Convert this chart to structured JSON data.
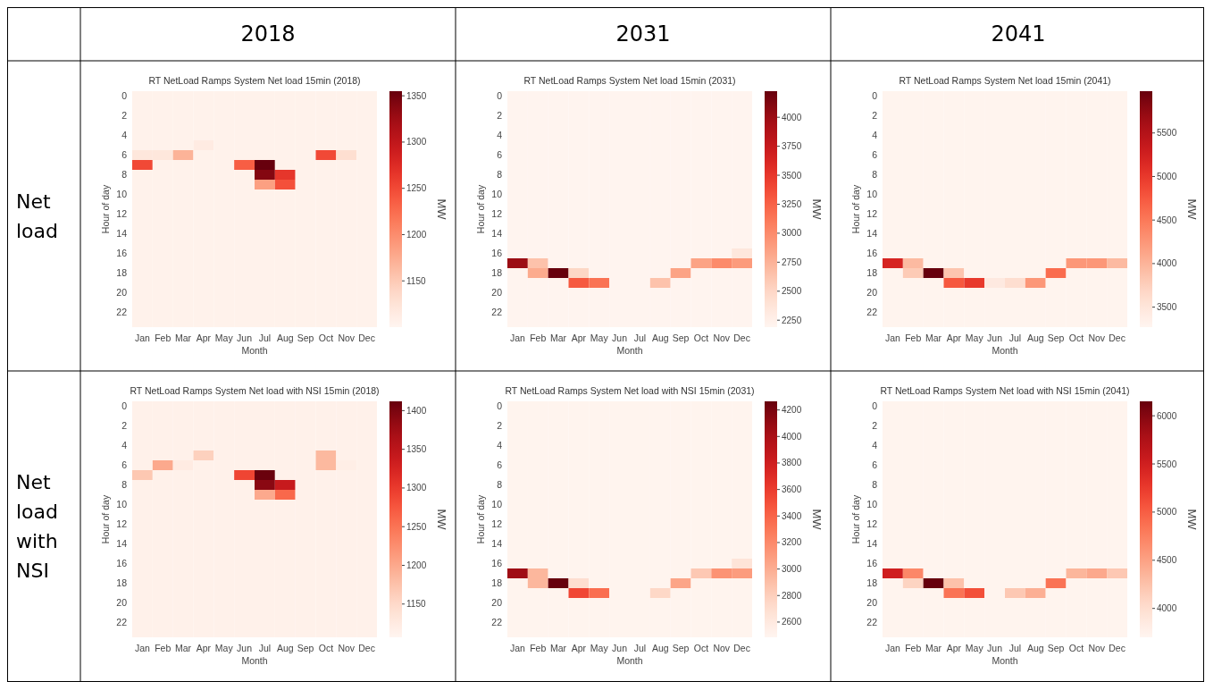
{
  "chart_data": [
    {
      "type": "heatmap",
      "title": "RT NetLoad Ramps System Net load 15min (2018)",
      "xlabel": "Month",
      "ylabel": "Hour of day",
      "clabel": "MW",
      "annotations": [
        "2018",
        "Net load"
      ],
      "categories": [
        "Jan",
        "Feb",
        "Mar",
        "Apr",
        "May",
        "Jun",
        "Jul",
        "Aug",
        "Sep",
        "Oct",
        "Nov",
        "Dec"
      ],
      "y_categories": [
        "0",
        null,
        "2",
        null,
        "4",
        null,
        "6",
        null,
        "8",
        null,
        "10",
        null,
        "12",
        null,
        "14",
        null,
        "16",
        null,
        "18",
        null,
        "20",
        null,
        "22",
        null
      ],
      "clim": [
        1100,
        1355
      ],
      "cticks": [
        1150,
        1200,
        1250,
        1300,
        1350
      ],
      "cells": [
        [
          1105,
          1105,
          1105,
          1105,
          1105,
          1105,
          1105,
          1105,
          1105,
          1105,
          1105,
          1105
        ],
        [
          1105,
          1105,
          1105,
          1105,
          1105,
          1105,
          1105,
          1105,
          1105,
          1105,
          1105,
          1105
        ],
        [
          1105,
          1105,
          1105,
          1105,
          1105,
          1105,
          1105,
          1105,
          1105,
          1105,
          1105,
          1105
        ],
        [
          1105,
          1105,
          1105,
          1105,
          1105,
          1105,
          1105,
          1105,
          1105,
          1105,
          1105,
          1105
        ],
        [
          1105,
          1105,
          1105,
          1105,
          1105,
          1105,
          1105,
          1105,
          1105,
          1105,
          1105,
          1105
        ],
        [
          1105,
          1105,
          1105,
          1115,
          1105,
          1105,
          1105,
          1105,
          1105,
          1105,
          1105,
          1105
        ],
        [
          1120,
          1120,
          1170,
          1105,
          1105,
          1105,
          1105,
          1105,
          1105,
          1250,
          1130,
          1105
        ],
        [
          1250,
          1105,
          1105,
          1105,
          1105,
          1235,
          1355,
          1105,
          1105,
          1105,
          1105,
          1105
        ],
        [
          1105,
          1105,
          1105,
          1105,
          1105,
          1105,
          1340,
          1265,
          1105,
          1105,
          1105,
          1105
        ],
        [
          1105,
          1105,
          1105,
          1105,
          1105,
          1105,
          1185,
          1245,
          1105,
          1105,
          1105,
          1105
        ],
        [
          1105,
          1105,
          1105,
          1105,
          1105,
          1105,
          1105,
          1105,
          1105,
          1105,
          1105,
          1105
        ],
        [
          1105,
          1105,
          1105,
          1105,
          1105,
          1105,
          1105,
          1105,
          1105,
          1105,
          1105,
          1105
        ],
        [
          1105,
          1105,
          1105,
          1105,
          1105,
          1105,
          1105,
          1105,
          1105,
          1105,
          1105,
          1105
        ],
        [
          1105,
          1105,
          1105,
          1105,
          1105,
          1105,
          1105,
          1105,
          1105,
          1105,
          1105,
          1105
        ],
        [
          1105,
          1105,
          1105,
          1105,
          1105,
          1105,
          1105,
          1105,
          1105,
          1105,
          1105,
          1105
        ],
        [
          1105,
          1105,
          1105,
          1105,
          1105,
          1105,
          1105,
          1105,
          1105,
          1105,
          1105,
          1105
        ],
        [
          1105,
          1105,
          1105,
          1105,
          1105,
          1105,
          1105,
          1105,
          1105,
          1105,
          1105,
          1105
        ],
        [
          1105,
          1105,
          1105,
          1105,
          1105,
          1105,
          1105,
          1105,
          1105,
          1105,
          1105,
          1105
        ],
        [
          1105,
          1105,
          1105,
          1105,
          1105,
          1105,
          1105,
          1105,
          1105,
          1105,
          1105,
          1105
        ],
        [
          1105,
          1105,
          1105,
          1105,
          1105,
          1105,
          1105,
          1105,
          1105,
          1105,
          1105,
          1105
        ],
        [
          1105,
          1105,
          1105,
          1105,
          1105,
          1105,
          1105,
          1105,
          1105,
          1105,
          1105,
          1105
        ],
        [
          1105,
          1105,
          1105,
          1105,
          1105,
          1105,
          1105,
          1105,
          1105,
          1105,
          1105,
          1105
        ],
        [
          1105,
          1105,
          1105,
          1105,
          1105,
          1105,
          1105,
          1105,
          1105,
          1105,
          1105,
          1105
        ],
        [
          1105,
          1105,
          1105,
          1105,
          1105,
          1105,
          1105,
          1105,
          1105,
          1105,
          1105,
          1105
        ]
      ]
    },
    {
      "type": "heatmap",
      "title": "RT NetLoad Ramps System Net load 15min (2031)",
      "xlabel": "Month",
      "ylabel": "Hour of day",
      "clabel": "MW",
      "annotations": [
        "2031"
      ],
      "categories": [
        "Jan",
        "Feb",
        "Mar",
        "Apr",
        "May",
        "Jun",
        "Jul",
        "Aug",
        "Sep",
        "Oct",
        "Nov",
        "Dec"
      ],
      "y_categories": [
        "0",
        null,
        "2",
        null,
        "4",
        null,
        "6",
        null,
        "8",
        null,
        "10",
        null,
        "12",
        null,
        "14",
        null,
        "16",
        null,
        "18",
        null,
        "20",
        null,
        "22",
        null
      ],
      "clim": [
        2190,
        4225
      ],
      "cticks": [
        2250,
        2500,
        2750,
        3000,
        3250,
        3500,
        3750,
        4000
      ],
      "cells": [
        [
          2200,
          2200,
          2200,
          2200,
          2200,
          2200,
          2200,
          2200,
          2200,
          2200,
          2200,
          2200
        ],
        [
          2200,
          2200,
          2200,
          2200,
          2200,
          2200,
          2200,
          2200,
          2200,
          2200,
          2200,
          2200
        ],
        [
          2200,
          2200,
          2200,
          2200,
          2200,
          2200,
          2200,
          2200,
          2200,
          2200,
          2200,
          2200
        ],
        [
          2200,
          2200,
          2200,
          2200,
          2200,
          2200,
          2200,
          2200,
          2200,
          2200,
          2200,
          2200
        ],
        [
          2200,
          2200,
          2200,
          2200,
          2200,
          2200,
          2200,
          2200,
          2200,
          2200,
          2200,
          2200
        ],
        [
          2200,
          2200,
          2200,
          2200,
          2200,
          2200,
          2200,
          2200,
          2200,
          2200,
          2200,
          2200
        ],
        [
          2200,
          2200,
          2200,
          2200,
          2200,
          2200,
          2200,
          2200,
          2200,
          2200,
          2200,
          2200
        ],
        [
          2200,
          2200,
          2200,
          2200,
          2200,
          2200,
          2200,
          2200,
          2200,
          2200,
          2200,
          2200
        ],
        [
          2200,
          2200,
          2200,
          2200,
          2200,
          2200,
          2200,
          2200,
          2200,
          2200,
          2200,
          2200
        ],
        [
          2200,
          2200,
          2200,
          2200,
          2200,
          2200,
          2200,
          2200,
          2200,
          2200,
          2200,
          2200
        ],
        [
          2200,
          2200,
          2200,
          2200,
          2200,
          2200,
          2200,
          2200,
          2200,
          2200,
          2200,
          2200
        ],
        [
          2200,
          2200,
          2200,
          2200,
          2200,
          2200,
          2200,
          2200,
          2200,
          2200,
          2200,
          2200
        ],
        [
          2200,
          2200,
          2200,
          2200,
          2200,
          2200,
          2200,
          2200,
          2200,
          2200,
          2200,
          2200
        ],
        [
          2200,
          2200,
          2200,
          2200,
          2200,
          2200,
          2200,
          2200,
          2200,
          2200,
          2200,
          2200
        ],
        [
          2200,
          2200,
          2200,
          2200,
          2200,
          2200,
          2200,
          2200,
          2200,
          2200,
          2200,
          2200
        ],
        [
          2200,
          2200,
          2200,
          2200,
          2200,
          2200,
          2200,
          2200,
          2200,
          2200,
          2200,
          2200
        ],
        [
          2200,
          2200,
          2200,
          2200,
          2200,
          2200,
          2200,
          2200,
          2200,
          2200,
          2200,
          2350
        ],
        [
          4000,
          2650,
          2200,
          2200,
          2200,
          2200,
          2200,
          2200,
          2200,
          2850,
          3000,
          2900
        ],
        [
          2200,
          2800,
          4225,
          2500,
          2200,
          2200,
          2200,
          2200,
          2850,
          2200,
          2200,
          2200
        ],
        [
          2200,
          2200,
          2200,
          3300,
          3150,
          2200,
          2200,
          2650,
          2200,
          2200,
          2200,
          2200
        ],
        [
          2200,
          2200,
          2200,
          2200,
          2200,
          2200,
          2200,
          2200,
          2200,
          2200,
          2200,
          2200
        ],
        [
          2200,
          2200,
          2200,
          2200,
          2200,
          2200,
          2200,
          2200,
          2200,
          2200,
          2200,
          2200
        ],
        [
          2200,
          2200,
          2200,
          2200,
          2200,
          2200,
          2200,
          2200,
          2200,
          2200,
          2200,
          2200
        ],
        [
          2200,
          2200,
          2200,
          2200,
          2200,
          2200,
          2200,
          2200,
          2200,
          2200,
          2200,
          2200
        ]
      ]
    },
    {
      "type": "heatmap",
      "title": "RT NetLoad Ramps System Net load 15min (2041)",
      "xlabel": "Month",
      "ylabel": "Hour of day",
      "clabel": "MW",
      "annotations": [
        "2041"
      ],
      "categories": [
        "Jan",
        "Feb",
        "Mar",
        "Apr",
        "May",
        "Jun",
        "Jul",
        "Aug",
        "Sep",
        "Oct",
        "Nov",
        "Dec"
      ],
      "y_categories": [
        "0",
        null,
        "2",
        null,
        "4",
        null,
        "6",
        null,
        "8",
        null,
        "10",
        null,
        "12",
        null,
        "14",
        null,
        "16",
        null,
        "18",
        null,
        "20",
        null,
        "22",
        null
      ],
      "clim": [
        3270,
        5980
      ],
      "cticks": [
        3500,
        4000,
        4500,
        5000,
        5500
      ],
      "cells": [
        [
          3290,
          3290,
          3290,
          3290,
          3290,
          3290,
          3290,
          3290,
          3290,
          3290,
          3290,
          3290
        ],
        [
          3290,
          3290,
          3290,
          3290,
          3290,
          3290,
          3290,
          3290,
          3290,
          3290,
          3290,
          3290
        ],
        [
          3290,
          3290,
          3290,
          3290,
          3290,
          3290,
          3290,
          3290,
          3290,
          3290,
          3290,
          3290
        ],
        [
          3290,
          3290,
          3290,
          3290,
          3290,
          3290,
          3290,
          3290,
          3290,
          3290,
          3290,
          3290
        ],
        [
          3290,
          3290,
          3290,
          3290,
          3290,
          3290,
          3290,
          3290,
          3290,
          3290,
          3290,
          3290
        ],
        [
          3290,
          3290,
          3290,
          3290,
          3290,
          3290,
          3290,
          3290,
          3290,
          3290,
          3290,
          3290
        ],
        [
          3290,
          3290,
          3290,
          3290,
          3290,
          3290,
          3290,
          3290,
          3290,
          3290,
          3290,
          3290
        ],
        [
          3290,
          3290,
          3290,
          3290,
          3290,
          3290,
          3290,
          3290,
          3290,
          3290,
          3290,
          3290
        ],
        [
          3290,
          3290,
          3290,
          3290,
          3290,
          3290,
          3290,
          3290,
          3290,
          3290,
          3290,
          3290
        ],
        [
          3290,
          3290,
          3290,
          3290,
          3290,
          3290,
          3290,
          3290,
          3290,
          3290,
          3290,
          3290
        ],
        [
          3290,
          3290,
          3290,
          3290,
          3290,
          3290,
          3290,
          3290,
          3290,
          3290,
          3290,
          3290
        ],
        [
          3290,
          3290,
          3290,
          3290,
          3290,
          3290,
          3290,
          3290,
          3290,
          3290,
          3290,
          3290
        ],
        [
          3290,
          3290,
          3290,
          3290,
          3290,
          3290,
          3290,
          3290,
          3290,
          3290,
          3290,
          3290
        ],
        [
          3290,
          3290,
          3290,
          3290,
          3290,
          3290,
          3290,
          3290,
          3290,
          3290,
          3290,
          3290
        ],
        [
          3290,
          3290,
          3290,
          3290,
          3290,
          3290,
          3290,
          3290,
          3290,
          3290,
          3290,
          3290
        ],
        [
          3290,
          3290,
          3290,
          3290,
          3290,
          3290,
          3290,
          3290,
          3290,
          3290,
          3290,
          3290
        ],
        [
          3290,
          3290,
          3290,
          3290,
          3290,
          3290,
          3290,
          3290,
          3290,
          3290,
          3290,
          3290
        ],
        [
          5200,
          3950,
          3290,
          3290,
          3290,
          3290,
          3290,
          3290,
          3290,
          4250,
          4250,
          3950
        ],
        [
          3290,
          3800,
          5980,
          3850,
          3290,
          3290,
          3290,
          3290,
          4600,
          3290,
          3290,
          3290
        ],
        [
          3290,
          3290,
          3290,
          4750,
          5000,
          3450,
          3600,
          4250,
          3290,
          3290,
          3290,
          3290
        ],
        [
          3290,
          3290,
          3290,
          3290,
          3290,
          3290,
          3290,
          3290,
          3290,
          3290,
          3290,
          3290
        ],
        [
          3290,
          3290,
          3290,
          3290,
          3290,
          3290,
          3290,
          3290,
          3290,
          3290,
          3290,
          3290
        ],
        [
          3290,
          3290,
          3290,
          3290,
          3290,
          3290,
          3290,
          3290,
          3290,
          3290,
          3290,
          3290
        ],
        [
          3290,
          3290,
          3290,
          3290,
          3290,
          3290,
          3290,
          3290,
          3290,
          3290,
          3290,
          3290
        ]
      ]
    },
    {
      "type": "heatmap",
      "title": "RT NetLoad Ramps System Net load with NSI 15min (2018)",
      "xlabel": "Month",
      "ylabel": "Hour of day",
      "clabel": "MW",
      "annotations": [
        "Net load with NSI"
      ],
      "categories": [
        "Jan",
        "Feb",
        "Mar",
        "Apr",
        "May",
        "Jun",
        "Jul",
        "Aug",
        "Sep",
        "Oct",
        "Nov",
        "Dec"
      ],
      "y_categories": [
        "0",
        null,
        "2",
        null,
        "4",
        null,
        "6",
        null,
        "8",
        null,
        "10",
        null,
        "12",
        null,
        "14",
        null,
        "16",
        null,
        "18",
        null,
        "20",
        null,
        "22",
        null
      ],
      "clim": [
        1107,
        1412
      ],
      "cticks": [
        1150,
        1200,
        1250,
        1300,
        1350,
        1400
      ],
      "cells": [
        [
          1115,
          1115,
          1115,
          1115,
          1115,
          1115,
          1115,
          1115,
          1115,
          1115,
          1115,
          1115
        ],
        [
          1115,
          1115,
          1115,
          1115,
          1115,
          1115,
          1115,
          1115,
          1115,
          1115,
          1115,
          1115
        ],
        [
          1115,
          1115,
          1115,
          1115,
          1115,
          1115,
          1115,
          1115,
          1115,
          1115,
          1115,
          1115
        ],
        [
          1115,
          1115,
          1115,
          1115,
          1115,
          1115,
          1115,
          1115,
          1115,
          1115,
          1115,
          1115
        ],
        [
          1115,
          1115,
          1115,
          1115,
          1115,
          1115,
          1115,
          1115,
          1115,
          1115,
          1115,
          1115
        ],
        [
          1115,
          1115,
          1115,
          1160,
          1115,
          1115,
          1115,
          1115,
          1115,
          1185,
          1115,
          1115
        ],
        [
          1115,
          1200,
          1125,
          1115,
          1115,
          1115,
          1115,
          1115,
          1115,
          1185,
          1120,
          1115
        ],
        [
          1170,
          1115,
          1115,
          1115,
          1115,
          1290,
          1410,
          1115,
          1115,
          1115,
          1115,
          1115
        ],
        [
          1115,
          1115,
          1115,
          1115,
          1115,
          1115,
          1390,
          1340,
          1115,
          1115,
          1115,
          1115
        ],
        [
          1115,
          1115,
          1115,
          1115,
          1115,
          1115,
          1200,
          1260,
          1115,
          1115,
          1115,
          1115
        ],
        [
          1115,
          1115,
          1115,
          1115,
          1115,
          1115,
          1115,
          1115,
          1115,
          1115,
          1115,
          1115
        ],
        [
          1115,
          1115,
          1115,
          1115,
          1115,
          1115,
          1115,
          1115,
          1115,
          1115,
          1115,
          1115
        ],
        [
          1115,
          1115,
          1115,
          1115,
          1115,
          1115,
          1115,
          1115,
          1115,
          1115,
          1115,
          1115
        ],
        [
          1115,
          1115,
          1115,
          1115,
          1115,
          1115,
          1115,
          1115,
          1115,
          1115,
          1115,
          1115
        ],
        [
          1115,
          1115,
          1115,
          1115,
          1115,
          1115,
          1115,
          1115,
          1115,
          1115,
          1115,
          1115
        ],
        [
          1115,
          1115,
          1115,
          1115,
          1115,
          1115,
          1115,
          1115,
          1115,
          1115,
          1115,
          1115
        ],
        [
          1115,
          1115,
          1115,
          1115,
          1115,
          1115,
          1115,
          1115,
          1115,
          1115,
          1115,
          1115
        ],
        [
          1115,
          1115,
          1115,
          1115,
          1115,
          1115,
          1115,
          1115,
          1115,
          1115,
          1115,
          1115
        ],
        [
          1115,
          1115,
          1115,
          1115,
          1115,
          1115,
          1115,
          1115,
          1115,
          1115,
          1115,
          1115
        ],
        [
          1115,
          1115,
          1115,
          1115,
          1115,
          1115,
          1115,
          1115,
          1115,
          1115,
          1115,
          1115
        ],
        [
          1115,
          1115,
          1115,
          1115,
          1115,
          1115,
          1115,
          1115,
          1115,
          1115,
          1115,
          1115
        ],
        [
          1115,
          1115,
          1115,
          1115,
          1115,
          1115,
          1115,
          1115,
          1115,
          1115,
          1115,
          1115
        ],
        [
          1115,
          1115,
          1115,
          1115,
          1115,
          1115,
          1115,
          1115,
          1115,
          1115,
          1115,
          1115
        ],
        [
          1115,
          1115,
          1115,
          1115,
          1115,
          1115,
          1115,
          1115,
          1115,
          1115,
          1115,
          1115
        ]
      ]
    },
    {
      "type": "heatmap",
      "title": "RT NetLoad Ramps System Net load with NSI 15min (2031)",
      "xlabel": "Month",
      "ylabel": "Hour of day",
      "clabel": "MW",
      "categories": [
        "Jan",
        "Feb",
        "Mar",
        "Apr",
        "May",
        "Jun",
        "Jul",
        "Aug",
        "Sep",
        "Oct",
        "Nov",
        "Dec"
      ],
      "y_categories": [
        "0",
        null,
        "2",
        null,
        "4",
        null,
        "6",
        null,
        "8",
        null,
        "10",
        null,
        "12",
        null,
        "14",
        null,
        "16",
        null,
        "18",
        null,
        "20",
        null,
        "22",
        null
      ],
      "clim": [
        2485,
        4265
      ],
      "cticks": [
        2600,
        2800,
        3000,
        3200,
        3400,
        3600,
        3800,
        4000,
        4200
      ],
      "cells": [
        [
          2500,
          2500,
          2500,
          2500,
          2500,
          2500,
          2500,
          2500,
          2500,
          2500,
          2500,
          2500
        ],
        [
          2500,
          2500,
          2500,
          2500,
          2500,
          2500,
          2500,
          2500,
          2500,
          2500,
          2500,
          2500
        ],
        [
          2500,
          2500,
          2500,
          2500,
          2500,
          2500,
          2500,
          2500,
          2500,
          2500,
          2500,
          2500
        ],
        [
          2500,
          2500,
          2500,
          2500,
          2500,
          2500,
          2500,
          2500,
          2500,
          2500,
          2500,
          2500
        ],
        [
          2500,
          2500,
          2500,
          2500,
          2500,
          2500,
          2500,
          2500,
          2500,
          2500,
          2500,
          2500
        ],
        [
          2500,
          2500,
          2500,
          2500,
          2500,
          2500,
          2500,
          2500,
          2500,
          2500,
          2500,
          2500
        ],
        [
          2500,
          2500,
          2500,
          2500,
          2500,
          2500,
          2500,
          2500,
          2500,
          2500,
          2500,
          2500
        ],
        [
          2500,
          2500,
          2500,
          2500,
          2500,
          2500,
          2500,
          2500,
          2500,
          2500,
          2500,
          2500
        ],
        [
          2500,
          2500,
          2500,
          2500,
          2500,
          2500,
          2500,
          2500,
          2500,
          2500,
          2500,
          2500
        ],
        [
          2500,
          2500,
          2500,
          2500,
          2500,
          2500,
          2500,
          2500,
          2500,
          2500,
          2500,
          2500
        ],
        [
          2500,
          2500,
          2500,
          2500,
          2500,
          2500,
          2500,
          2500,
          2500,
          2500,
          2500,
          2500
        ],
        [
          2500,
          2500,
          2500,
          2500,
          2500,
          2500,
          2500,
          2500,
          2500,
          2500,
          2500,
          2500
        ],
        [
          2500,
          2500,
          2500,
          2500,
          2500,
          2500,
          2500,
          2500,
          2500,
          2500,
          2500,
          2500
        ],
        [
          2500,
          2500,
          2500,
          2500,
          2500,
          2500,
          2500,
          2500,
          2500,
          2500,
          2500,
          2500
        ],
        [
          2500,
          2500,
          2500,
          2500,
          2500,
          2500,
          2500,
          2500,
          2500,
          2500,
          2500,
          2500
        ],
        [
          2500,
          2500,
          2500,
          2500,
          2500,
          2500,
          2500,
          2500,
          2500,
          2500,
          2500,
          2500
        ],
        [
          2500,
          2500,
          2500,
          2500,
          2500,
          2500,
          2500,
          2500,
          2500,
          2500,
          2500,
          2650
        ],
        [
          4050,
          2950,
          2500,
          2500,
          2500,
          2500,
          2500,
          2500,
          2500,
          2850,
          3150,
          3100
        ],
        [
          2500,
          2950,
          4265,
          2700,
          2500,
          2500,
          2500,
          2500,
          3050,
          2500,
          2500,
          2500
        ],
        [
          2500,
          2500,
          2500,
          3550,
          3350,
          2500,
          2500,
          2750,
          2500,
          2500,
          2500,
          2500
        ],
        [
          2500,
          2500,
          2500,
          2500,
          2500,
          2500,
          2500,
          2500,
          2500,
          2500,
          2500,
          2500
        ],
        [
          2500,
          2500,
          2500,
          2500,
          2500,
          2500,
          2500,
          2500,
          2500,
          2500,
          2500,
          2500
        ],
        [
          2500,
          2500,
          2500,
          2500,
          2500,
          2500,
          2500,
          2500,
          2500,
          2500,
          2500,
          2500
        ],
        [
          2500,
          2500,
          2500,
          2500,
          2500,
          2500,
          2500,
          2500,
          2500,
          2500,
          2500,
          2500
        ]
      ]
    },
    {
      "type": "heatmap",
      "title": "RT NetLoad Ramps System Net load with NSI 15min (2041)",
      "xlabel": "Month",
      "ylabel": "Hour of day",
      "clabel": "MW",
      "categories": [
        "Jan",
        "Feb",
        "Mar",
        "Apr",
        "May",
        "Jun",
        "Jul",
        "Aug",
        "Sep",
        "Oct",
        "Nov",
        "Dec"
      ],
      "y_categories": [
        "0",
        null,
        "2",
        null,
        "4",
        null,
        "6",
        null,
        "8",
        null,
        "10",
        null,
        "12",
        null,
        "14",
        null,
        "16",
        null,
        "18",
        null,
        "20",
        null,
        "22",
        null
      ],
      "clim": [
        3700,
        6150
      ],
      "cticks": [
        4000,
        4500,
        5000,
        5500,
        6000
      ],
      "cells": [
        [
          3720,
          3720,
          3720,
          3720,
          3720,
          3720,
          3720,
          3720,
          3720,
          3720,
          3720,
          3720
        ],
        [
          3720,
          3720,
          3720,
          3720,
          3720,
          3720,
          3720,
          3720,
          3720,
          3720,
          3720,
          3720
        ],
        [
          3720,
          3720,
          3720,
          3720,
          3720,
          3720,
          3720,
          3720,
          3720,
          3720,
          3720,
          3720
        ],
        [
          3720,
          3720,
          3720,
          3720,
          3720,
          3720,
          3720,
          3720,
          3720,
          3720,
          3720,
          3720
        ],
        [
          3720,
          3720,
          3720,
          3720,
          3720,
          3720,
          3720,
          3720,
          3720,
          3720,
          3720,
          3720
        ],
        [
          3720,
          3720,
          3720,
          3720,
          3720,
          3720,
          3720,
          3720,
          3720,
          3720,
          3720,
          3720
        ],
        [
          3720,
          3720,
          3720,
          3720,
          3720,
          3720,
          3720,
          3720,
          3720,
          3720,
          3720,
          3720
        ],
        [
          3720,
          3720,
          3720,
          3720,
          3720,
          3720,
          3720,
          3720,
          3720,
          3720,
          3720,
          3720
        ],
        [
          3720,
          3720,
          3720,
          3720,
          3720,
          3720,
          3720,
          3720,
          3720,
          3720,
          3720,
          3720
        ],
        [
          3720,
          3720,
          3720,
          3720,
          3720,
          3720,
          3720,
          3720,
          3720,
          3720,
          3720,
          3720
        ],
        [
          3720,
          3720,
          3720,
          3720,
          3720,
          3720,
          3720,
          3720,
          3720,
          3720,
          3720,
          3720
        ],
        [
          3720,
          3720,
          3720,
          3720,
          3720,
          3720,
          3720,
          3720,
          3720,
          3720,
          3720,
          3720
        ],
        [
          3720,
          3720,
          3720,
          3720,
          3720,
          3720,
          3720,
          3720,
          3720,
          3720,
          3720,
          3720
        ],
        [
          3720,
          3720,
          3720,
          3720,
          3720,
          3720,
          3720,
          3720,
          3720,
          3720,
          3720,
          3720
        ],
        [
          3720,
          3720,
          3720,
          3720,
          3720,
          3720,
          3720,
          3720,
          3720,
          3720,
          3720,
          3720
        ],
        [
          3720,
          3720,
          3720,
          3720,
          3720,
          3720,
          3720,
          3720,
          3720,
          3720,
          3720,
          3720
        ],
        [
          3720,
          3720,
          3720,
          3720,
          3720,
          3720,
          3720,
          3720,
          3720,
          3720,
          3720,
          3720
        ],
        [
          5500,
          4700,
          3720,
          3720,
          3720,
          3720,
          3720,
          3720,
          3720,
          4350,
          4450,
          4200
        ],
        [
          3720,
          4100,
          6150,
          4250,
          3720,
          3720,
          3720,
          3720,
          4850,
          3720,
          3720,
          3720
        ],
        [
          3720,
          3720,
          3720,
          4850,
          5100,
          3720,
          4200,
          4400,
          3720,
          3720,
          3720,
          3720
        ],
        [
          3720,
          3720,
          3720,
          3720,
          3720,
          3720,
          3720,
          3720,
          3720,
          3720,
          3720,
          3720
        ],
        [
          3720,
          3720,
          3720,
          3720,
          3720,
          3720,
          3720,
          3720,
          3720,
          3720,
          3720,
          3720
        ],
        [
          3720,
          3720,
          3720,
          3720,
          3720,
          3720,
          3720,
          3720,
          3720,
          3720,
          3720,
          3720
        ],
        [
          3720,
          3720,
          3720,
          3720,
          3720,
          3720,
          3720,
          3720,
          3720,
          3720,
          3720,
          3720
        ]
      ]
    }
  ]
}
